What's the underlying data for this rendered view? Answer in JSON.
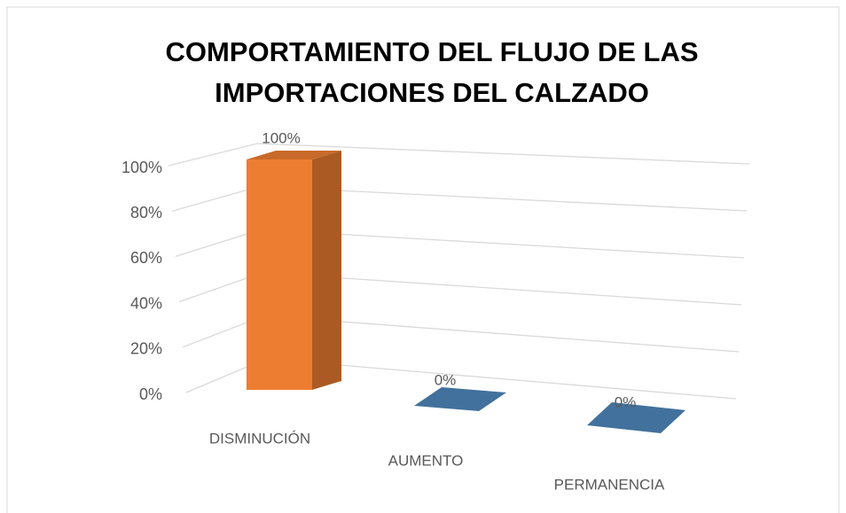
{
  "chart_data": {
    "type": "bar3d",
    "title": [
      "COMPORTAMIENTO DEL FLUJO DE LAS",
      "IMPORTACIONES DEL CALZADO"
    ],
    "categories": [
      "DISMINUCIÓN",
      "AUMENTO",
      "PERMANENCIA"
    ],
    "values": [
      100,
      0,
      0
    ],
    "value_labels": [
      "100%",
      "0%",
      "0%"
    ],
    "colors": [
      "#ed7d31",
      "#41719c",
      "#41719c"
    ],
    "ylim": [
      0,
      100
    ],
    "yticks": [
      {
        "value": 0,
        "label": "0%"
      },
      {
        "value": 20,
        "label": "20%"
      },
      {
        "value": 40,
        "label": "40%"
      },
      {
        "value": 60,
        "label": "60%"
      },
      {
        "value": 80,
        "label": "80%"
      },
      {
        "value": 100,
        "label": "100%"
      }
    ],
    "grid": true
  }
}
